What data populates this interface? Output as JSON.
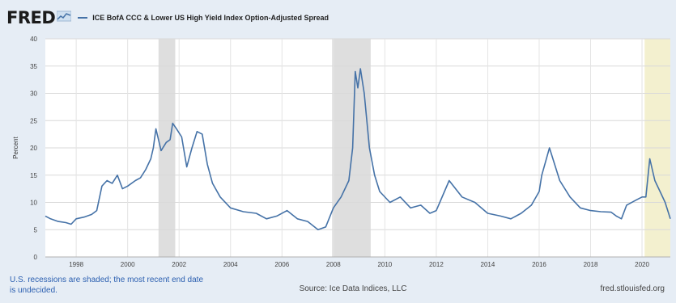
{
  "logo": "FRED",
  "legend": {
    "label": "ICE BofA CCC & Lower US High Yield Index Option-Adjusted Spread",
    "color": "#4572a7"
  },
  "footer": {
    "note": "U.S. recessions are shaded; the most recent end date is undecided.",
    "source": "Source: Ice Data Indices, LLC",
    "site": "fred.stlouisfed.org"
  },
  "chart_data": {
    "type": "line",
    "ylabel": "Percent",
    "xlim": [
      1996.8,
      2021.1
    ],
    "ylim": [
      0,
      40
    ],
    "yticks": [
      0,
      5,
      10,
      15,
      20,
      25,
      30,
      35,
      40
    ],
    "xticks": [
      1998,
      2000,
      2002,
      2004,
      2006,
      2008,
      2010,
      2012,
      2014,
      2016,
      2018,
      2020
    ],
    "grid": true,
    "recessions": [
      {
        "start": 2001.2,
        "end": 2001.85,
        "color": "#dedede"
      },
      {
        "start": 2007.95,
        "end": 2009.45,
        "color": "#dedede"
      },
      {
        "start": 2020.1,
        "end": 2021.1,
        "color": "#f3f0cf"
      }
    ],
    "series": [
      {
        "color": "#4572a7",
        "x": [
          1996.8,
          1997.0,
          1997.3,
          1997.6,
          1997.8,
          1998.0,
          1998.3,
          1998.6,
          1998.8,
          1999.0,
          1999.2,
          1999.4,
          1999.6,
          1999.8,
          2000.0,
          2000.3,
          2000.5,
          2000.7,
          2000.9,
          2001.0,
          2001.1,
          2001.3,
          2001.5,
          2001.65,
          2001.75,
          2001.9,
          2002.1,
          2002.3,
          2002.5,
          2002.7,
          2002.9,
          2003.1,
          2003.3,
          2003.6,
          2004.0,
          2004.5,
          2005.0,
          2005.4,
          2005.8,
          2006.2,
          2006.6,
          2007.0,
          2007.4,
          2007.7,
          2008.0,
          2008.3,
          2008.6,
          2008.75,
          2008.85,
          2008.95,
          2009.05,
          2009.2,
          2009.4,
          2009.6,
          2009.8,
          2010.2,
          2010.6,
          2011.0,
          2011.4,
          2011.75,
          2012.0,
          2012.5,
          2013.0,
          2013.5,
          2014.0,
          2014.5,
          2014.9,
          2015.3,
          2015.7,
          2016.0,
          2016.1,
          2016.4,
          2016.8,
          2017.2,
          2017.6,
          2018.0,
          2018.4,
          2018.8,
          2019.0,
          2019.2,
          2019.4,
          2019.8,
          2020.0,
          2020.15,
          2020.3,
          2020.5,
          2020.7,
          2020.9,
          2021.1
        ],
        "y": [
          7.5,
          7.0,
          6.5,
          6.3,
          6.0,
          7.0,
          7.3,
          7.8,
          8.5,
          13.0,
          14.0,
          13.5,
          15.0,
          12.5,
          13.0,
          14.0,
          14.5,
          16.0,
          18.0,
          20.0,
          23.5,
          19.5,
          21.0,
          21.5,
          24.5,
          23.5,
          22.0,
          16.5,
          20.0,
          23.0,
          22.5,
          17.0,
          13.5,
          11.0,
          9.0,
          8.3,
          8.0,
          7.0,
          7.5,
          8.5,
          7.0,
          6.5,
          5.0,
          5.5,
          9.0,
          11.0,
          14.0,
          20.0,
          34.0,
          31.0,
          34.5,
          30.0,
          20.0,
          15.0,
          12.0,
          10.0,
          11.0,
          9.0,
          9.5,
          8.0,
          8.5,
          14.0,
          11.0,
          10.0,
          8.0,
          7.5,
          7.0,
          8.0,
          9.5,
          12.0,
          15.0,
          20.0,
          14.0,
          11.0,
          9.0,
          8.5,
          8.3,
          8.2,
          7.5,
          7.0,
          9.5,
          10.5,
          11.0,
          11.0,
          18.0,
          14.0,
          12.0,
          10.0,
          7.0
        ]
      }
    ]
  }
}
